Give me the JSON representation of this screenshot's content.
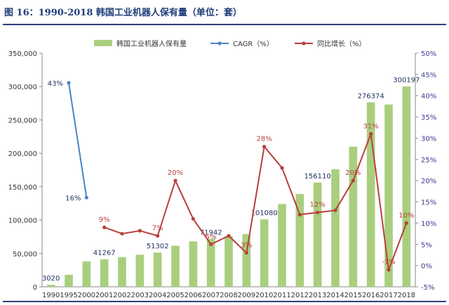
{
  "header": {
    "title": "图 16：1990-2018 韩国工业机器人保有量（单位：套）"
  },
  "chart_data": {
    "type": "bar",
    "title": "",
    "categories": [
      "1990",
      "1995",
      "2000",
      "2001",
      "2002",
      "2003",
      "2004",
      "2005",
      "2006",
      "2007",
      "2008",
      "2009",
      "2010",
      "2011",
      "2012",
      "2013",
      "2014",
      "2015",
      "2016",
      "2017",
      "2018"
    ],
    "series": [
      {
        "name": "韩国工业机器人保有量",
        "type": "bar",
        "axis": "left",
        "color": "#a9cf7e",
        "values": [
          3020,
          18000,
          38000,
          41267,
          44500,
          48000,
          51302,
          61500,
          68000,
          71942,
          76000,
          79000,
          101080,
          124000,
          139000,
          156110,
          176000,
          210000,
          276374,
          273000,
          300197
        ]
      },
      {
        "name": "CAGR（%）",
        "type": "line",
        "axis": "right",
        "color": "#4a84c4",
        "points": [
          {
            "x": "1995",
            "y": 43
          },
          {
            "x": "2000",
            "y": 16
          }
        ]
      },
      {
        "name": "同比增长（%）",
        "type": "line",
        "axis": "right",
        "color": "#b8403d",
        "points": [
          {
            "x": "2001",
            "y": 9
          },
          {
            "x": "2002",
            "y": 7.5
          },
          {
            "x": "2003",
            "y": 8.2
          },
          {
            "x": "2004",
            "y": 7
          },
          {
            "x": "2005",
            "y": 20
          },
          {
            "x": "2006",
            "y": 11
          },
          {
            "x": "2007",
            "y": 5
          },
          {
            "x": "2008",
            "y": 7
          },
          {
            "x": "2009",
            "y": 3
          },
          {
            "x": "2010",
            "y": 28
          },
          {
            "x": "2011",
            "y": 23
          },
          {
            "x": "2012",
            "y": 12
          },
          {
            "x": "2013",
            "y": 12.5
          },
          {
            "x": "2014",
            "y": 13
          },
          {
            "x": "2015",
            "y": 20
          },
          {
            "x": "2016",
            "y": 31
          },
          {
            "x": "2017",
            "y": -1
          },
          {
            "x": "2018",
            "y": 10
          }
        ]
      }
    ],
    "bar_labels": [
      {
        "x": "1990",
        "text": "3020"
      },
      {
        "x": "2001",
        "text": "41267"
      },
      {
        "x": "2004",
        "text": "51302"
      },
      {
        "x": "2007",
        "text": "71942"
      },
      {
        "x": "2010",
        "text": "101080"
      },
      {
        "x": "2013",
        "text": "156110"
      },
      {
        "x": "2016",
        "text": "276374"
      },
      {
        "x": "2018",
        "text": "300197"
      }
    ],
    "cagr_labels": [
      {
        "x": "1995",
        "text": "43%"
      },
      {
        "x": "2000",
        "text": "16%"
      }
    ],
    "yoy_labels": [
      {
        "x": "2001",
        "text": "9%"
      },
      {
        "x": "2004",
        "text": "7%"
      },
      {
        "x": "2005",
        "text": "20%"
      },
      {
        "x": "2007",
        "text": "5%"
      },
      {
        "x": "2009",
        "text": "3%"
      },
      {
        "x": "2010",
        "text": "28%"
      },
      {
        "x": "2013",
        "text": "12%"
      },
      {
        "x": "2015",
        "text": "20%"
      },
      {
        "x": "2016",
        "text": "31%"
      },
      {
        "x": "2017",
        "text": "-1%"
      },
      {
        "x": "2018",
        "text": "10%"
      }
    ],
    "y_left": {
      "min": 0,
      "max": 350000,
      "ticks": [
        "0",
        "50,000",
        "100,000",
        "150,000",
        "200,000",
        "250,000",
        "300,000",
        "350,000"
      ]
    },
    "y_right": {
      "min": -5,
      "max": 50,
      "ticks": [
        "-5%",
        "0%",
        "5%",
        "10%",
        "15%",
        "20%",
        "25%",
        "30%",
        "35%",
        "40%",
        "45%",
        "50%"
      ]
    },
    "legend": {
      "placement": "top-center"
    },
    "grid": false
  }
}
